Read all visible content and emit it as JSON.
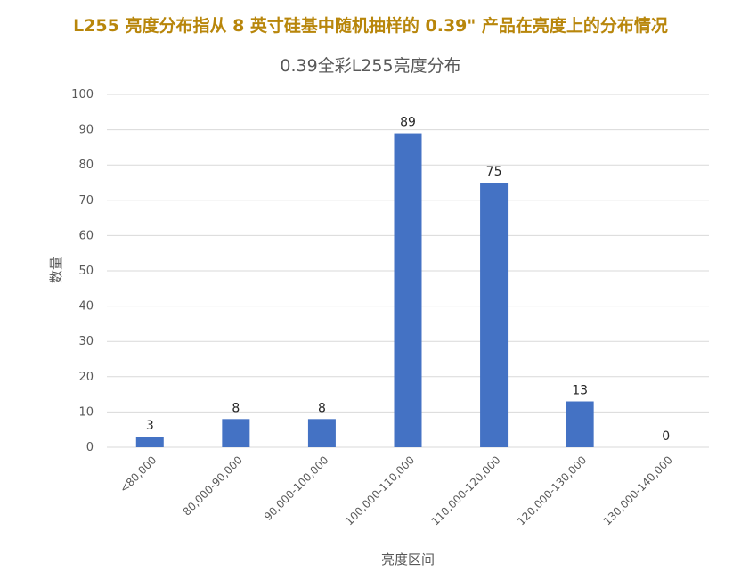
{
  "heading": "L255 亮度分布指从 8 英寸硅基中随机抽样的 0.39\" 产品在亮度上的分布情况",
  "chart_data": {
    "type": "bar",
    "title": "0.39全彩L255亮度分布",
    "xlabel": "亮度区间",
    "ylabel": "数量",
    "categories": [
      "<80,000",
      "80,000-90,000",
      "90,000-100,000",
      "100,000-110,000",
      "110,000-120,000",
      "120,000-130,000",
      "130,000-140,000"
    ],
    "values": [
      3,
      8,
      8,
      89,
      75,
      13,
      0
    ],
    "ylim": [
      0,
      100
    ],
    "yticks": [
      0,
      10,
      20,
      30,
      40,
      50,
      60,
      70,
      80,
      90,
      100
    ],
    "grid": true,
    "legend": "none",
    "bar_color": "#4472c4",
    "grid_color": "#d9d9d9"
  }
}
